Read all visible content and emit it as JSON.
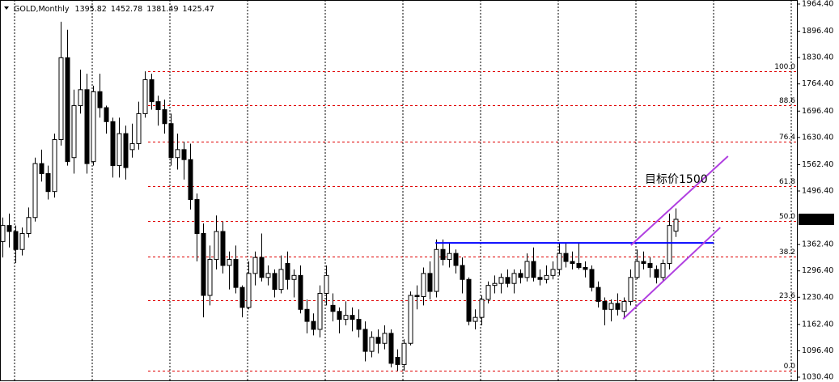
{
  "chart_data": {
    "type": "candlestick",
    "title": "GOLD,Monthly",
    "up_color": "#ffffff",
    "down_color": "#000000",
    "xlim": [
      -0.375,
      122.75
    ],
    "ylim": [
      1022.3,
      1974.5
    ],
    "yticks": [
      {
        "value": 1964.4,
        "label": "1964.40"
      },
      {
        "value": 1896.4,
        "label": "1896.40"
      },
      {
        "value": 1830.4,
        "label": "1830.40"
      },
      {
        "value": 1764.4,
        "label": "1764.40"
      },
      {
        "value": 1696.4,
        "label": "1696.40"
      },
      {
        "value": 1630.4,
        "label": "1630.40"
      },
      {
        "value": 1562.4,
        "label": "1562.40"
      },
      {
        "value": 1496.4,
        "label": "1496.40"
      },
      {
        "value": 1362.4,
        "label": "1362.40"
      },
      {
        "value": 1296.4,
        "label": "1296.40"
      },
      {
        "value": 1230.4,
        "label": "1230.40"
      },
      {
        "value": 1162.4,
        "label": "1162.40"
      },
      {
        "value": 1096.4,
        "label": "1096.40"
      },
      {
        "value": 1030.4,
        "label": "1030.40"
      }
    ],
    "open": [
      1370,
      1410,
      1395,
      1350,
      1390,
      1430,
      1565,
      1540,
      1495,
      1625,
      1830,
      1580,
      1710,
      1750,
      1570,
      1745,
      1705,
      1670,
      1560,
      1640,
      1600,
      1615,
      1690,
      1775,
      1720,
      1700,
      1665,
      1580,
      1600,
      1575,
      1475,
      1390,
      1235,
      1325,
      1395,
      1310,
      1325,
      1255,
      1205,
      1290,
      1330,
      1280,
      1290,
      1250,
      1315,
      1275,
      1285,
      1200,
      1170,
      1150,
      1240,
      1210,
      1195,
      1175,
      1185,
      1175,
      1150,
      1095,
      1130,
      1115,
      1140,
      1080,
      1062,
      1115,
      1235,
      1232,
      1290,
      1245,
      1350,
      1325,
      1340,
      1310,
      1275,
      1170,
      1180,
      1225,
      1260,
      1265,
      1280,
      1265,
      1290,
      1280,
      1320,
      1280,
      1275,
      1285,
      1300,
      1340,
      1320,
      1315,
      1305,
      1300,
      1255,
      1220,
      1200,
      1215,
      1195,
      1220,
      1280,
      1320,
      1315,
      1300,
      1280,
      1315,
      1395.82
    ],
    "high": [
      1430,
      1440,
      1410,
      1405,
      1455,
      1580,
      1600,
      1560,
      1640,
      1920,
      1900,
      1750,
      1800,
      1790,
      1760,
      1790,
      1710,
      1680,
      1680,
      1660,
      1665,
      1720,
      1796,
      1790,
      1735,
      1725,
      1690,
      1640,
      1620,
      1615,
      1490,
      1415,
      1360,
      1435,
      1420,
      1345,
      1360,
      1260,
      1320,
      1345,
      1390,
      1310,
      1300,
      1335,
      1345,
      1300,
      1310,
      1225,
      1190,
      1260,
      1310,
      1240,
      1205,
      1220,
      1205,
      1200,
      1170,
      1145,
      1150,
      1160,
      1150,
      1100,
      1125,
      1245,
      1260,
      1305,
      1320,
      1375,
      1375,
      1365,
      1350,
      1330,
      1280,
      1200,
      1235,
      1270,
      1285,
      1290,
      1300,
      1300,
      1300,
      1340,
      1355,
      1300,
      1310,
      1320,
      1365,
      1365,
      1345,
      1365,
      1320,
      1310,
      1270,
      1230,
      1225,
      1240,
      1230,
      1300,
      1350,
      1345,
      1330,
      1310,
      1325,
      1440,
      1452.78
    ],
    "low": [
      1330,
      1355,
      1316,
      1335,
      1380,
      1420,
      1520,
      1475,
      1480,
      1610,
      1560,
      1540,
      1690,
      1540,
      1560,
      1680,
      1640,
      1530,
      1530,
      1525,
      1580,
      1600,
      1680,
      1700,
      1660,
      1640,
      1560,
      1550,
      1525,
      1450,
      1320,
      1180,
      1210,
      1300,
      1290,
      1250,
      1240,
      1180,
      1200,
      1260,
      1270,
      1260,
      1230,
      1240,
      1250,
      1230,
      1190,
      1140,
      1135,
      1130,
      1210,
      1170,
      1140,
      1160,
      1145,
      1130,
      1070,
      1080,
      1090,
      1100,
      1055,
      1046,
      1046,
      1110,
      1200,
      1210,
      1225,
      1230,
      1310,
      1305,
      1290,
      1240,
      1160,
      1150,
      1160,
      1215,
      1240,
      1240,
      1255,
      1240,
      1265,
      1270,
      1270,
      1260,
      1265,
      1275,
      1285,
      1305,
      1300,
      1300,
      1280,
      1245,
      1205,
      1160,
      1170,
      1185,
      1180,
      1210,
      1275,
      1300,
      1280,
      1265,
      1270,
      1300,
      1381.49
    ],
    "close": [
      1410,
      1395,
      1350,
      1390,
      1430,
      1565,
      1540,
      1495,
      1625,
      1830,
      1570,
      1710,
      1750,
      1565,
      1745,
      1705,
      1670,
      1560,
      1640,
      1555,
      1615,
      1690,
      1775,
      1720,
      1700,
      1665,
      1580,
      1600,
      1575,
      1475,
      1390,
      1235,
      1325,
      1395,
      1310,
      1325,
      1255,
      1205,
      1290,
      1330,
      1280,
      1290,
      1250,
      1300,
      1275,
      1285,
      1200,
      1170,
      1150,
      1240,
      1285,
      1195,
      1175,
      1185,
      1175,
      1150,
      1095,
      1130,
      1115,
      1140,
      1065,
      1062,
      1115,
      1235,
      1232,
      1290,
      1245,
      1350,
      1325,
      1340,
      1310,
      1275,
      1170,
      1180,
      1225,
      1260,
      1265,
      1280,
      1265,
      1290,
      1280,
      1320,
      1280,
      1275,
      1285,
      1300,
      1340,
      1320,
      1315,
      1305,
      1300,
      1255,
      1220,
      1200,
      1215,
      1200,
      1220,
      1280,
      1320,
      1315,
      1305,
      1280,
      1315,
      1410,
      1425.47
    ],
    "fib_color": "#e00000",
    "fib_levels": [
      {
        "label": "100.0",
        "value": 1796
      },
      {
        "label": "88.6",
        "value": 1710.5
      },
      {
        "label": "76.4",
        "value": 1619
      },
      {
        "label": "61.8",
        "value": 1509.5
      },
      {
        "label": "50.0",
        "value": 1421
      },
      {
        "label": "38.2",
        "value": 1332.5
      },
      {
        "label": "23.6",
        "value": 1223
      },
      {
        "label": "0.0",
        "value": 1046
      }
    ],
    "trendlines": [
      {
        "color": "#0000ff",
        "x": [
          66.9,
          109.9
        ],
        "y": [
          1366.5,
          1366.5
        ]
      },
      {
        "color": "#b040e0",
        "x": [
          97.1,
          112.1
        ],
        "y": [
          1360.6,
          1583.5
        ]
      },
      {
        "color": "#b040e0",
        "x": [
          95.9,
          110.9
        ],
        "y": [
          1176,
          1405
        ]
      }
    ],
    "annotation": {
      "text": "目标价1500",
      "color": "#e00000"
    }
  }
}
